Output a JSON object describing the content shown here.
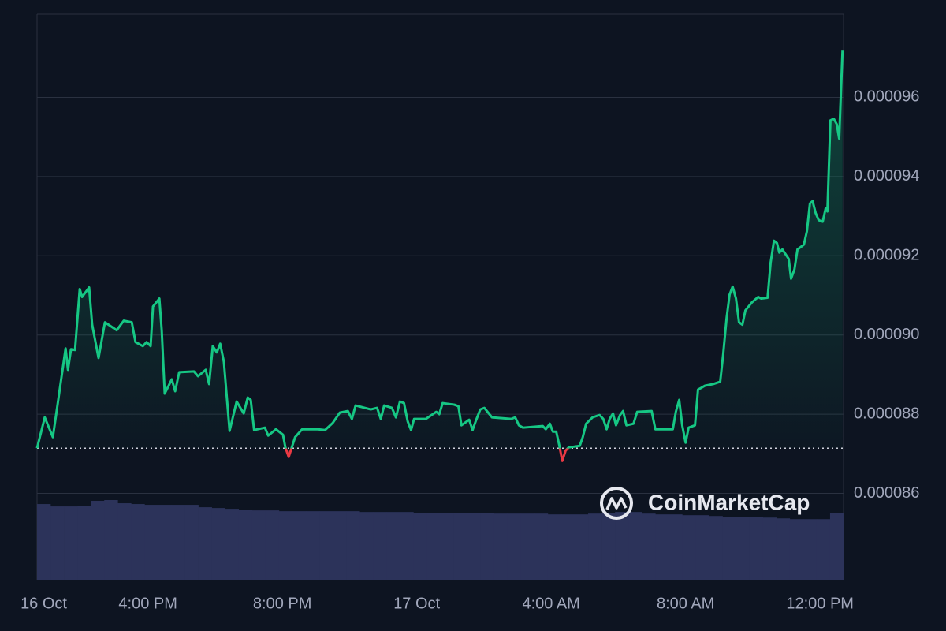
{
  "chart_data": {
    "type": "line",
    "watermark": "CoinMarketCap",
    "color": "#16c784",
    "below_color": "#ea3943",
    "baseline": 8.714e-05,
    "xlim": [
      12.7,
      36.7
    ],
    "xticks": [
      {
        "value": 12.9,
        "label": "16 Oct"
      },
      {
        "value": 16,
        "label": "4:00 PM"
      },
      {
        "value": 20,
        "label": "8:00 PM"
      },
      {
        "value": 24,
        "label": "17 Oct"
      },
      {
        "value": 28,
        "label": "4:00 AM"
      },
      {
        "value": 32,
        "label": "8:00 AM"
      },
      {
        "value": 36,
        "label": "12:00 PM"
      }
    ],
    "ylim": [
      8.382e-05,
      9.81e-05
    ],
    "yticks": [
      8.6e-05,
      8.8e-05,
      9e-05,
      9.2e-05,
      9.4e-05,
      9.6e-05
    ],
    "yticks_labels": [
      "0.000086",
      "0.000088",
      "0.000090",
      "0.000092",
      "0.000094",
      "0.000096"
    ],
    "grid": true,
    "x": [
      12.7,
      12.93,
      13.17,
      13.29,
      13.55,
      13.62,
      13.71,
      13.83,
      13.97,
      14.04,
      14.25,
      14.34,
      14.53,
      14.72,
      15.07,
      15.28,
      15.52,
      15.63,
      15.85,
      15.96,
      16.08,
      16.15,
      16.34,
      16.41,
      16.5,
      16.71,
      16.81,
      16.93,
      17.37,
      17.49,
      17.72,
      17.82,
      17.93,
      18.05,
      18.15,
      18.26,
      18.43,
      18.64,
      18.85,
      18.97,
      19.06,
      19.16,
      19.48,
      19.58,
      19.81,
      20.02,
      20.09,
      20.19,
      20.28,
      20.38,
      20.59,
      21.06,
      21.27,
      21.5,
      21.71,
      21.95,
      22.07,
      22.18,
      22.63,
      22.82,
      22.93,
      23.03,
      23.26,
      23.38,
      23.5,
      23.62,
      23.73,
      23.83,
      23.92,
      24.27,
      24.58,
      24.67,
      24.77,
      25.12,
      25.24,
      25.33,
      25.56,
      25.66,
      25.77,
      25.89,
      26.01,
      26.24,
      26.81,
      26.93,
      27.04,
      27.16,
      27.75,
      27.84,
      27.96,
      28.05,
      28.15,
      28.24,
      28.33,
      28.43,
      28.52,
      28.85,
      28.94,
      29.04,
      29.23,
      29.44,
      29.55,
      29.65,
      29.74,
      29.84,
      29.93,
      30.05,
      30.14,
      30.24,
      30.45,
      30.56,
      30.99,
      31.1,
      31.62,
      31.71,
      31.81,
      31.9,
      32.0,
      32.09,
      32.28,
      32.37,
      32.58,
      32.82,
      33.03,
      33.12,
      33.22,
      33.31,
      33.4,
      33.5,
      33.59,
      33.69,
      33.78,
      33.97,
      34.16,
      34.25,
      34.44,
      34.53,
      34.63,
      34.72,
      34.79,
      34.88,
      35.07,
      35.14,
      35.24,
      35.33,
      35.52,
      35.61,
      35.7,
      35.78,
      35.87,
      35.96,
      36.08,
      36.17,
      36.22,
      36.31,
      36.41,
      36.5,
      36.57,
      36.67
    ],
    "values": [
      8.714e-05,
      8.792e-05,
      8.742e-05,
      8.812e-05,
      8.966e-05,
      8.912e-05,
      8.964e-05,
      8.962e-05,
      9.116e-05,
      9.096e-05,
      9.12e-05,
      9.026e-05,
      8.942e-05,
      9.032e-05,
      9.012e-05,
      9.036e-05,
      9.032e-05,
      8.982e-05,
      8.972e-05,
      8.982e-05,
      8.972e-05,
      9.072e-05,
      9.092e-05,
      9.012e-05,
      8.852e-05,
      8.888e-05,
      8.858e-05,
      8.906e-05,
      8.908e-05,
      8.896e-05,
      8.912e-05,
      8.876e-05,
      8.972e-05,
      8.956e-05,
      8.978e-05,
      8.932e-05,
      8.758e-05,
      8.832e-05,
      8.802e-05,
      8.842e-05,
      8.836e-05,
      8.76e-05,
      8.766e-05,
      8.746e-05,
      8.762e-05,
      8.748e-05,
      8.716e-05,
      8.692e-05,
      8.716e-05,
      8.742e-05,
      8.762e-05,
      8.762e-05,
      8.76e-05,
      8.778e-05,
      8.804e-05,
      8.808e-05,
      8.788e-05,
      8.822e-05,
      8.812e-05,
      8.816e-05,
      8.788e-05,
      8.822e-05,
      8.816e-05,
      8.792e-05,
      8.832e-05,
      8.828e-05,
      8.782e-05,
      8.76e-05,
      8.788e-05,
      8.788e-05,
      8.806e-05,
      8.8e-05,
      8.828e-05,
      8.824e-05,
      8.82e-05,
      8.772e-05,
      8.786e-05,
      8.76e-05,
      8.786e-05,
      8.812e-05,
      8.816e-05,
      8.792e-05,
      8.788e-05,
      8.792e-05,
      8.772e-05,
      8.766e-05,
      8.77e-05,
      8.762e-05,
      8.776e-05,
      8.756e-05,
      8.756e-05,
      8.722e-05,
      8.682e-05,
      8.708e-05,
      8.716e-05,
      8.72e-05,
      8.742e-05,
      8.776e-05,
      8.792e-05,
      8.798e-05,
      8.788e-05,
      8.762e-05,
      8.788e-05,
      8.802e-05,
      8.772e-05,
      8.798e-05,
      8.808e-05,
      8.772e-05,
      8.776e-05,
      8.806e-05,
      8.808e-05,
      8.762e-05,
      8.762e-05,
      8.806e-05,
      8.836e-05,
      8.772e-05,
      8.728e-05,
      8.766e-05,
      8.772e-05,
      8.862e-05,
      8.872e-05,
      8.876e-05,
      8.882e-05,
      8.952e-05,
      9.042e-05,
      9.102e-05,
      9.122e-05,
      9.092e-05,
      9.032e-05,
      9.026e-05,
      9.062e-05,
      9.082e-05,
      9.096e-05,
      9.092e-05,
      9.094e-05,
      9.182e-05,
      9.238e-05,
      9.232e-05,
      9.208e-05,
      9.216e-05,
      9.192e-05,
      9.142e-05,
      9.166e-05,
      9.216e-05,
      9.228e-05,
      9.262e-05,
      9.332e-05,
      9.338e-05,
      9.308e-05,
      9.29e-05,
      9.286e-05,
      9.32e-05,
      9.312e-05,
      9.542e-05,
      9.546e-05,
      9.532e-05,
      9.496e-05,
      9.718e-05
    ],
    "volume_color": "#2c335a",
    "volume_values": [
      95,
      92,
      92,
      93,
      99,
      100,
      96,
      95,
      94,
      94,
      94,
      94,
      91,
      90,
      89,
      88,
      87,
      87,
      86,
      86,
      86,
      86,
      86,
      86,
      85,
      85,
      85,
      85,
      84,
      84,
      84,
      84,
      84,
      84,
      83,
      83,
      83,
      83,
      82,
      82,
      82,
      83,
      84,
      85,
      85,
      83,
      82,
      82,
      81,
      81,
      80,
      79,
      79,
      79,
      78,
      77,
      76,
      76,
      76,
      84
    ]
  }
}
